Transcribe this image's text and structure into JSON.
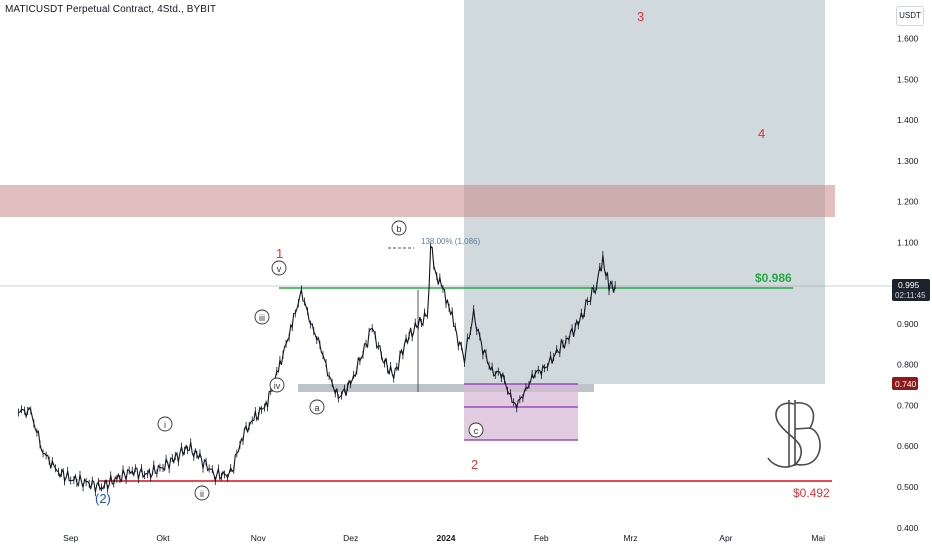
{
  "title": "MATICUSDT Perpetual Contract, 4Std., BYBIT",
  "currency_button": "USDT",
  "colors": {
    "candles": "#131722",
    "resistance_zone": "#c98a8a",
    "forecast_box": "#a9bcc0",
    "green_line": "#27a844",
    "red_line": "#e0303a",
    "purple": "#8e2fb8",
    "wave_red": "#e0303a",
    "wave_blue": "#1d4fc9",
    "annotation_blue": "#5b7d9a"
  },
  "chart_data": {
    "type": "line",
    "title": "MATICUSDT Perpetual Contract, 4Std., BYBIT",
    "xlabel": "",
    "ylabel": "",
    "x_ticks": [
      "Sep",
      "Okt",
      "Nov",
      "Dez",
      "2024",
      "Feb",
      "Mrz",
      "Apr",
      "Mai"
    ],
    "y_ticks": [
      "0.400",
      "0.500",
      "0.600",
      "0.700",
      "0.800",
      "0.900",
      "1.000",
      "1.100",
      "1.200",
      "1.300",
      "1.400",
      "1.500",
      "1.600"
    ],
    "ylim": [
      0.37,
      1.67
    ],
    "grid": false,
    "price_series": {
      "name": "",
      "dates": [
        "2023-08-15",
        "2023-08-19",
        "2023-08-23",
        "2023-08-27",
        "2023-09-01",
        "2023-09-06",
        "2023-09-11",
        "2023-09-16",
        "2023-09-21",
        "2023-09-26",
        "2023-10-01",
        "2023-10-05",
        "2023-10-09",
        "2023-10-13",
        "2023-10-18",
        "2023-10-23",
        "2023-10-27",
        "2023-10-31",
        "2023-11-04",
        "2023-11-08",
        "2023-11-12",
        "2023-11-15",
        "2023-11-18",
        "2023-11-21",
        "2023-11-24",
        "2023-11-27",
        "2023-12-01",
        "2023-12-04",
        "2023-12-08",
        "2023-12-11",
        "2023-12-15",
        "2023-12-19",
        "2023-12-23",
        "2023-12-26",
        "2023-12-27",
        "2023-12-29",
        "2023-12-31",
        "2024-01-02",
        "2024-01-04",
        "2024-01-07",
        "2024-01-10",
        "2024-01-13",
        "2024-01-16",
        "2024-01-19",
        "2024-01-22",
        "2024-01-24",
        "2024-01-27",
        "2024-01-30",
        "2024-02-02",
        "2024-02-05",
        "2024-02-09",
        "2024-02-13",
        "2024-02-16",
        "2024-02-19",
        "2024-02-21",
        "2024-02-23",
        "2024-02-25"
      ],
      "values": [
        0.69,
        0.68,
        0.59,
        0.54,
        0.52,
        0.51,
        0.5,
        0.52,
        0.54,
        0.53,
        0.55,
        0.57,
        0.6,
        0.57,
        0.53,
        0.53,
        0.63,
        0.67,
        0.71,
        0.8,
        0.9,
        0.98,
        0.9,
        0.85,
        0.77,
        0.72,
        0.75,
        0.81,
        0.89,
        0.82,
        0.77,
        0.86,
        0.9,
        0.92,
        1.09,
        1.02,
        0.98,
        0.95,
        0.88,
        0.82,
        0.92,
        0.84,
        0.78,
        0.78,
        0.72,
        0.7,
        0.74,
        0.78,
        0.79,
        0.82,
        0.86,
        0.9,
        0.95,
        1.0,
        1.06,
        0.99,
        0.995
      ]
    },
    "current_price": "0.995",
    "countdown": "02:11:45",
    "level_label": "0.740",
    "horizontal_levels": [
      {
        "value": 0.986,
        "label": "$0.986",
        "color": "#27a844"
      },
      {
        "value": 0.492,
        "label": "$0.492",
        "color": "#e0303a"
      }
    ],
    "zones": [
      {
        "name": "resistance",
        "from": 1.17,
        "to": 1.25
      },
      {
        "name": "forecast",
        "from": 0.74,
        "to": 1.67,
        "x_from": "2024-01-18",
        "x_to": "2024-04-30"
      },
      {
        "name": "gray-support",
        "from": 0.715,
        "to": 0.73,
        "x_from": "2023-11-17",
        "x_to": "2024-02-15"
      },
      {
        "name": "purple-box",
        "from": 0.6,
        "to": 0.74,
        "x_from": "2024-01-18",
        "x_to": "2024-02-15"
      }
    ],
    "fib_annotation": "138.00% (1.086)",
    "wave_labels_red": [
      "1",
      "2",
      "3",
      "4"
    ],
    "wave_label_blue": "(2)",
    "circled_labels": [
      "i",
      "ii",
      "iii",
      "iv",
      "v",
      "a",
      "b",
      "c"
    ],
    "logo_text": "SB"
  }
}
